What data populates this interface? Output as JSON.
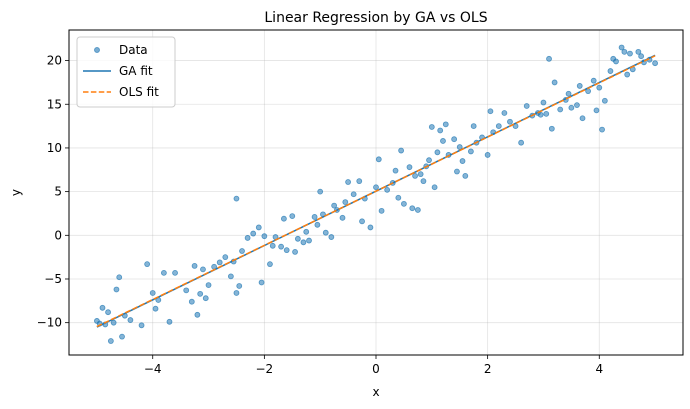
{
  "chart_data": {
    "type": "scatter",
    "title": "Linear Regression by GA vs OLS",
    "xlabel": "x",
    "ylabel": "y",
    "xlim": [
      -5.5,
      5.5
    ],
    "ylim": [
      -13.7,
      23.5
    ],
    "xticks": [
      -4,
      -2,
      0,
      2,
      4
    ],
    "yticks": [
      -10,
      -5,
      0,
      5,
      10,
      15,
      20
    ],
    "grid": true,
    "legend_position": "top-left",
    "legend": [
      {
        "label": "Data",
        "marker": "circle",
        "color": "#1f77b4"
      },
      {
        "label": "GA fit",
        "line": "solid",
        "color": "#1f77b4"
      },
      {
        "label": "OLS fit",
        "line": "dashed",
        "color": "#ff7f0e"
      }
    ],
    "series": [
      {
        "name": "Data",
        "kind": "scatter",
        "color": "#1f77b4",
        "x": [
          -5.0,
          -4.95,
          -4.9,
          -4.85,
          -4.8,
          -4.75,
          -4.7,
          -4.65,
          -4.6,
          -4.55,
          -4.5,
          -4.4,
          -4.2,
          -4.1,
          -4.0,
          -3.95,
          -3.9,
          -3.8,
          -3.7,
          -3.6,
          -3.4,
          -3.3,
          -3.25,
          -3.2,
          -3.15,
          -3.1,
          -3.05,
          -3.0,
          -2.9,
          -2.8,
          -2.7,
          -2.6,
          -2.55,
          -2.5,
          -2.5,
          -2.45,
          -2.4,
          -2.3,
          -2.2,
          -2.1,
          -2.05,
          -2.0,
          -1.9,
          -1.85,
          -1.8,
          -1.7,
          -1.65,
          -1.6,
          -1.5,
          -1.45,
          -1.4,
          -1.3,
          -1.25,
          -1.2,
          -1.1,
          -1.05,
          -1.0,
          -0.95,
          -0.9,
          -0.8,
          -0.75,
          -0.7,
          -0.6,
          -0.55,
          -0.5,
          -0.4,
          -0.3,
          -0.25,
          -0.2,
          -0.1,
          0.0,
          0.05,
          0.1,
          0.2,
          0.3,
          0.35,
          0.4,
          0.45,
          0.5,
          0.6,
          0.65,
          0.7,
          0.75,
          0.8,
          0.85,
          0.9,
          0.95,
          1.0,
          1.05,
          1.1,
          1.15,
          1.2,
          1.25,
          1.3,
          1.4,
          1.45,
          1.5,
          1.55,
          1.6,
          1.7,
          1.75,
          1.8,
          1.9,
          2.0,
          2.05,
          2.1,
          2.2,
          2.3,
          2.4,
          2.5,
          2.6,
          2.7,
          2.8,
          2.9,
          2.95,
          3.0,
          3.05,
          3.1,
          3.15,
          3.2,
          3.3,
          3.4,
          3.45,
          3.5,
          3.6,
          3.65,
          3.7,
          3.8,
          3.9,
          3.95,
          4.0,
          4.05,
          4.1,
          4.2,
          4.25,
          4.3,
          4.4,
          4.45,
          4.5,
          4.55,
          4.6,
          4.7,
          4.75,
          4.8,
          4.9,
          5.0
        ],
        "y": [
          -9.8,
          -10.1,
          -8.3,
          -10.2,
          -8.8,
          -12.1,
          -10.0,
          -6.2,
          -4.8,
          -11.6,
          -9.2,
          -9.7,
          -10.3,
          -3.3,
          -6.6,
          -8.4,
          -7.4,
          -4.3,
          -9.9,
          -4.3,
          -6.3,
          -7.6,
          -3.5,
          -9.1,
          -6.7,
          -3.9,
          -7.2,
          -5.7,
          -3.6,
          -3.1,
          -2.5,
          -4.7,
          -3.0,
          4.2,
          -6.6,
          -5.8,
          -1.8,
          -0.3,
          0.2,
          0.9,
          -5.4,
          -0.1,
          -3.3,
          -1.2,
          -0.2,
          -1.3,
          1.9,
          -1.7,
          2.2,
          -1.9,
          -0.4,
          -0.8,
          0.4,
          -0.6,
          2.1,
          1.2,
          5.0,
          2.4,
          0.3,
          -0.2,
          3.4,
          2.9,
          2.0,
          3.8,
          6.1,
          4.7,
          6.2,
          1.6,
          4.2,
          0.9,
          5.5,
          8.7,
          2.8,
          5.2,
          6.0,
          7.4,
          4.3,
          9.7,
          3.6,
          7.8,
          3.1,
          6.8,
          2.9,
          7.0,
          6.2,
          7.9,
          8.6,
          12.4,
          5.5,
          9.5,
          12.0,
          10.8,
          12.7,
          9.2,
          11.0,
          7.3,
          10.1,
          8.5,
          6.8,
          9.6,
          12.5,
          10.6,
          11.2,
          9.2,
          14.2,
          11.8,
          12.5,
          14.0,
          13.0,
          12.5,
          10.6,
          14.8,
          13.7,
          14.0,
          13.8,
          15.2,
          13.9,
          20.2,
          12.2,
          17.5,
          14.4,
          15.5,
          16.2,
          14.6,
          14.9,
          17.1,
          13.4,
          16.5,
          17.7,
          14.3,
          16.9,
          12.1,
          15.4,
          18.8,
          20.2,
          19.9,
          21.5,
          21.0,
          18.4,
          20.8,
          19.0,
          21.0,
          20.5,
          19.8,
          20.1,
          19.7
        ]
      },
      {
        "name": "GA fit",
        "kind": "line",
        "style": "solid",
        "color": "#1f77b4",
        "x": [
          -5.0,
          5.0
        ],
        "y": [
          -10.5,
          20.6
        ]
      },
      {
        "name": "OLS fit",
        "kind": "line",
        "style": "dashed",
        "color": "#ff7f0e",
        "x": [
          -5.0,
          5.0
        ],
        "y": [
          -10.45,
          20.55
        ]
      }
    ]
  }
}
